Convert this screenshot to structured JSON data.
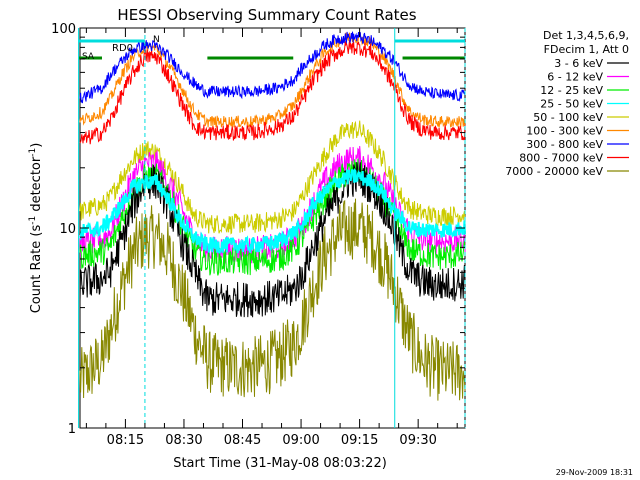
{
  "chart_data": {
    "type": "line",
    "title": "HESSI Observing Summary Count Rates",
    "xlabel": "Start Time (31-May-08 08:03:22)",
    "ylabel_main": "Count Rate (s",
    "ylabel_sup": "-1",
    "ylabel_rest": " detector",
    "ylabel_sup2": "-1",
    "ylabel_close": ")",
    "yscale": "log",
    "ylim": [
      1,
      100
    ],
    "xlim": [
      "08:03:22",
      "09:42:00"
    ],
    "x_ticks": [
      "08:15",
      "08:30",
      "08:45",
      "09:00",
      "09:15",
      "09:30"
    ],
    "y_ticks": [
      "1",
      "10",
      "100"
    ],
    "legend_header": [
      "Det 1,3,4,5,6,9,",
      "FDecim 1, Att 0"
    ],
    "footer_date": "29-Nov-2009 18:31",
    "annotations": {
      "rd0": "RD0",
      "n": "N",
      "sa": "SA"
    },
    "x": [
      "08:03",
      "08:09",
      "08:11",
      "08:14",
      "08:17",
      "08:20",
      "08:23",
      "08:26",
      "08:29",
      "08:32",
      "08:34",
      "08:36",
      "08:37",
      "08:42",
      "08:48",
      "08:54",
      "08:58",
      "09:00",
      "09:03",
      "09:06",
      "09:09",
      "09:12",
      "09:15",
      "09:18",
      "09:21",
      "09:24",
      "09:26",
      "09:28",
      "09:31",
      "09:34",
      "09:37",
      "09:40",
      "09:42"
    ],
    "series": [
      {
        "name": "3 - 6 keV",
        "color": "#000000",
        "values": [
          5.2,
          5.6,
          6.0,
          8.5,
          13,
          17,
          17,
          13,
          9,
          6.5,
          5.2,
          4.4,
          4.4,
          4.4,
          4.4,
          4.5,
          4.9,
          5.6,
          8,
          11,
          14,
          17,
          18,
          16,
          13,
          9.5,
          7.3,
          6.0,
          5.4,
          5.2,
          5.2,
          5.3,
          5.4
        ]
      },
      {
        "name": "6 - 12 keV",
        "color": "#ff00ff",
        "values": [
          8.2,
          8.8,
          9.5,
          13,
          18,
          21,
          21,
          17,
          13,
          9.5,
          8.4,
          7.8,
          7.8,
          7.8,
          7.8,
          8.0,
          9.0,
          10,
          13,
          17,
          20,
          22,
          22,
          20,
          17,
          13,
          11,
          9.5,
          8.8,
          8.6,
          8.6,
          8.7,
          8.8
        ]
      },
      {
        "name": "12 - 25 keV",
        "color": "#00ee00",
        "values": [
          7.2,
          7.6,
          8.0,
          11,
          15,
          18,
          18,
          15,
          11,
          8,
          7.3,
          6.8,
          6.8,
          6.8,
          6.8,
          7.0,
          7.8,
          8.8,
          11,
          14,
          17,
          19,
          19,
          17,
          14,
          11,
          9,
          7.8,
          7.4,
          7.2,
          7.2,
          7.3,
          7.4
        ]
      },
      {
        "name": "25 - 50 keV",
        "color": "#00ffff",
        "values": [
          9.5,
          10,
          11,
          13,
          16,
          17,
          17,
          14,
          11,
          9.2,
          8.6,
          8.2,
          8.2,
          8.2,
          8.2,
          8.5,
          9.5,
          10,
          13,
          15,
          17,
          18,
          18,
          17,
          15,
          12,
          11,
          10,
          9.8,
          9.8,
          9.8,
          9.9,
          10
        ]
      },
      {
        "name": "50 - 100 keV",
        "color": "#cccc00",
        "values": [
          12,
          13,
          14,
          18,
          22,
          25,
          24,
          20,
          16,
          12,
          11,
          10.5,
          10.5,
          10.5,
          10.5,
          11,
          12,
          14,
          18,
          23,
          28,
          31,
          31,
          27,
          22,
          17,
          14,
          12.5,
          11.8,
          11.5,
          11.5,
          11.6,
          11.8
        ]
      },
      {
        "name": "100 - 300 keV",
        "color": "#ff8800",
        "values": [
          34,
          38,
          44,
          58,
          72,
          80,
          79,
          66,
          52,
          40,
          36,
          34,
          34,
          34,
          34,
          36,
          41,
          48,
          62,
          75,
          85,
          90,
          90,
          84,
          72,
          57,
          45,
          38,
          35,
          34,
          34,
          34,
          34
        ]
      },
      {
        "name": "300 - 800 keV",
        "color": "#0000ff",
        "values": [
          44,
          50,
          58,
          68,
          78,
          82,
          81,
          72,
          62,
          54,
          50,
          48,
          48,
          48,
          48,
          50,
          55,
          62,
          72,
          82,
          88,
          90,
          90,
          86,
          78,
          68,
          58,
          52,
          48,
          47,
          46,
          46,
          46
        ]
      },
      {
        "name": "800 - 7000 keV",
        "color": "#ff0000",
        "values": [
          27,
          30,
          34,
          46,
          60,
          72,
          72,
          58,
          44,
          34,
          31,
          30,
          30,
          30,
          30,
          32,
          36,
          42,
          54,
          66,
          75,
          80,
          80,
          76,
          64,
          50,
          40,
          34,
          31,
          30,
          30,
          30,
          30
        ]
      },
      {
        "name": "7000 - 20000 keV",
        "color": "#888800",
        "values": [
          1.7,
          2.2,
          3.0,
          5.0,
          7.5,
          9.0,
          9.0,
          7.5,
          5.2,
          3.4,
          2.6,
          2.2,
          2.1,
          2.0,
          2.0,
          2.2,
          2.6,
          3.2,
          5.0,
          7.2,
          9.0,
          10,
          10,
          9.0,
          7.0,
          5.0,
          3.6,
          2.8,
          2.2,
          2.0,
          1.9,
          1.9,
          1.9
        ]
      }
    ],
    "attenuator_states": [
      {
        "name": "RD0",
        "color": "#00dddd",
        "segments": [
          [
            "08:03",
            "08:20"
          ],
          [
            "09:24",
            "09:42"
          ]
        ]
      },
      {
        "name": "SA",
        "color": "#008800",
        "segments": [
          [
            "08:03",
            "08:09"
          ],
          [
            "08:36",
            "08:58"
          ],
          [
            "09:26",
            "09:42"
          ]
        ]
      }
    ]
  }
}
